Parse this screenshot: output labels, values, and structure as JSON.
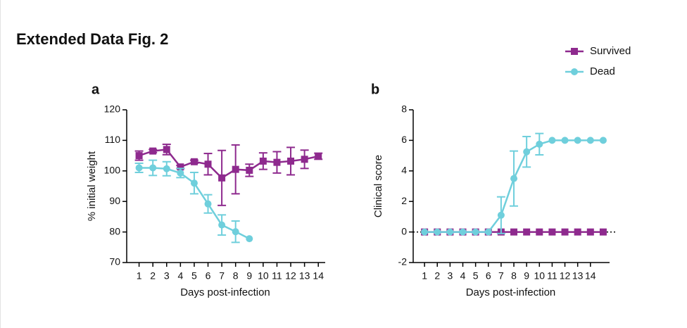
{
  "title": "Extended Data Fig. 2",
  "chart_data": [
    {
      "type": "line",
      "label": "a",
      "xlabel": "Days post-infection",
      "ylabel": "% initial weight",
      "x": [
        1,
        2,
        3,
        4,
        5,
        6,
        7,
        8,
        9,
        10,
        11,
        12,
        13,
        14
      ],
      "xlim": [
        0,
        14.5
      ],
      "xticks": [
        1,
        2,
        3,
        4,
        5,
        6,
        7,
        8,
        9,
        10,
        11,
        12,
        13,
        14
      ],
      "ylim": [
        70,
        120
      ],
      "yticks": [
        70,
        80,
        90,
        100,
        110,
        120
      ],
      "series": [
        {
          "name": "Survived",
          "color": "#8e2a8e",
          "marker": "square",
          "values": [
            105,
            106.5,
            107,
            101.3,
            103,
            102.2,
            97.7,
            100.5,
            100.2,
            103.2,
            102.8,
            103.2,
            103.8,
            104.8
          ],
          "errors": [
            1.5,
            0.5,
            1.7,
            0.5,
            0.5,
            3.5,
            9,
            8,
            2,
            2.7,
            3.5,
            4.5,
            3,
            1
          ]
        },
        {
          "name": "Dead",
          "color": "#6fcfdc",
          "marker": "circle",
          "values": [
            101,
            101,
            100.7,
            99.3,
            96,
            89.2,
            82.3,
            80.1,
            77.8,
            null,
            null,
            null,
            null,
            null
          ],
          "errors": [
            1.5,
            2.5,
            2.3,
            1.5,
            3.5,
            3,
            3.3,
            3.5,
            0,
            null,
            null,
            null,
            null,
            null
          ]
        }
      ]
    },
    {
      "type": "line",
      "label": "b",
      "xlabel": "Days post-infection",
      "ylabel": "Clinical score",
      "x": [
        1,
        2,
        3,
        4,
        5,
        6,
        7,
        8,
        9,
        10,
        11,
        12,
        13,
        14,
        15
      ],
      "xlim": [
        0,
        15.5
      ],
      "xticks": [
        1,
        2,
        3,
        4,
        5,
        6,
        7,
        8,
        9,
        10,
        11,
        12,
        13,
        14
      ],
      "ylim": [
        -2,
        8
      ],
      "yticks": [
        -2,
        0,
        2,
        4,
        6,
        8
      ],
      "hline": 0,
      "series": [
        {
          "name": "Survived",
          "color": "#8e2a8e",
          "marker": "square",
          "values": [
            0,
            0,
            0,
            0,
            0,
            0,
            0,
            0,
            0,
            0,
            0,
            0,
            0,
            0,
            0
          ],
          "errors": [
            0,
            0,
            0,
            0,
            0,
            0,
            0,
            0,
            0,
            0,
            0,
            0,
            0,
            0,
            0
          ]
        },
        {
          "name": "Dead",
          "color": "#6fcfdc",
          "marker": "circle",
          "values": [
            0,
            0,
            0,
            0,
            0,
            0,
            1.1,
            3.5,
            5.25,
            5.75,
            6,
            6,
            6,
            6,
            6
          ],
          "errors": [
            0,
            0,
            0,
            0,
            0,
            0,
            1.2,
            1.8,
            1.0,
            0.7,
            0,
            0,
            0,
            0,
            0
          ]
        }
      ]
    }
  ]
}
